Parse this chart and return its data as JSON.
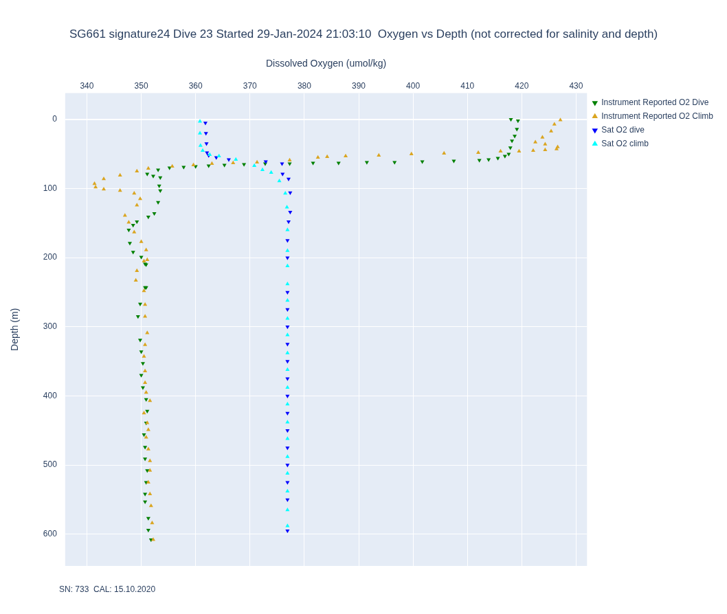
{
  "chart_data": {
    "type": "scatter",
    "title": "SG661 signature24 Dive 23 Started 29-Jan-2024 21:03:10  Oxygen vs Depth (not corrected for salinity and depth)",
    "xlabel": "Dissolved Oxygen (umol/kg)",
    "ylabel": "Depth (m)",
    "xlim": [
      336,
      432
    ],
    "xticks": [
      340,
      350,
      360,
      370,
      380,
      390,
      400,
      410,
      420,
      430
    ],
    "ylim": [
      646,
      -38
    ],
    "yticks": [
      0,
      100,
      200,
      300,
      400,
      500,
      600
    ],
    "grid": true,
    "legend": "top right",
    "marker": "triangle",
    "annotations": [
      "SN: 733  CAL: 15.10.2020"
    ],
    "series": [
      {
        "name": "Instrument Reported O2 Dive",
        "color": "#008000",
        "marker": "triangle-down",
        "x": [
          418.0,
          419.3,
          419.1,
          418.7,
          418.2,
          417.9,
          417.6,
          416.9,
          415.6,
          413.9,
          412.2,
          407.5,
          401.7,
          396.6,
          391.5,
          386.3,
          381.6,
          377.3,
          372.8,
          368.9,
          365.3,
          362.4,
          360.0,
          357.8,
          355.2,
          353.1,
          351.1,
          352.2,
          353.5,
          353.3,
          353.5,
          353.1,
          352.4,
          351.3,
          349.2,
          348.5,
          347.7,
          347.9,
          348.5,
          350.0,
          350.9,
          350.7,
          350.7,
          350.9,
          349.8,
          349.8,
          350.3,
          350.3,
          351.1,
          350.5,
          350.7,
          350.9,
          350.7,
          351.3,
          351.8,
          349.4,
          350.0,
          350.0,
          350.9,
          350.9,
          350.7,
          351.1,
          350.7,
          351.3
        ],
        "values": [
          0,
          2,
          14,
          24,
          31,
          41,
          50,
          53,
          56,
          58,
          59,
          60,
          61,
          62,
          62,
          63,
          63,
          64,
          64,
          65,
          66,
          67,
          68,
          69,
          70,
          73,
          79,
          82,
          84,
          96,
          103,
          120,
          136,
          141,
          148,
          153,
          160,
          179,
          192,
          199,
          210,
          209,
          243,
          243,
          267,
          319,
          353,
          388,
          422,
          456,
          491,
          525,
          553,
          577,
          608,
          285,
          336,
          370,
          405,
          439,
          474,
          508,
          542,
          594
        ]
      },
      {
        "name": "Instrument Reported O2 Climb",
        "color": "#daa520",
        "x": [
          427.1,
          426.0,
          425.4,
          423.8,
          422.5,
          424.3,
          426.6,
          426.4,
          424.3,
          422.1,
          419.5,
          416.1,
          412.0,
          405.7,
          399.7,
          393.7,
          387.6,
          384.2,
          382.5,
          377.3,
          371.3,
          366.9,
          363.0,
          359.6,
          355.7,
          351.3,
          349.2,
          346.1,
          343.1,
          341.4,
          341.6,
          343.1,
          346.1,
          348.7,
          349.8,
          349.2,
          347.0,
          347.7,
          348.7,
          350.0,
          350.9,
          351.1,
          350.5,
          349.2,
          349.0,
          350.5,
          350.7,
          351.1,
          350.5,
          350.7,
          351.6,
          350.5,
          351.3,
          350.9,
          351.6,
          351.3,
          351.8,
          352.2,
          350.7,
          350.7,
          350.7,
          350.9,
          351.1,
          351.3,
          351.6,
          351.6,
          352.0
        ],
        "values": [
          1,
          7,
          17,
          26,
          33,
          36,
          40,
          43,
          44,
          45,
          46,
          46,
          48,
          49,
          50,
          52,
          53,
          54,
          55,
          59,
          62,
          63,
          64,
          66,
          68,
          71,
          75,
          81,
          86,
          93,
          98,
          101,
          103,
          107,
          115,
          124,
          139,
          149,
          163,
          177,
          189,
          203,
          205,
          219,
          233,
          248,
          285,
          309,
          343,
          381,
          407,
          425,
          449,
          460,
          494,
          525,
          559,
          608,
          268,
          326,
          364,
          395,
          439,
          477,
          508,
          542,
          584
        ]
      },
      {
        "name": "Sat O2 dive",
        "color": "#0000ff",
        "marker": "triangle-down",
        "x": [
          361.8,
          361.9,
          362.0,
          362.1,
          362.4,
          363.8,
          366.1,
          372.9,
          375.9,
          376.0,
          377.1,
          377.4,
          377.4,
          377.1,
          376.9,
          376.9,
          376.9,
          376.9,
          376.9,
          376.9,
          376.9,
          376.9,
          376.9,
          376.9,
          376.9,
          376.9,
          376.9,
          376.9,
          376.9,
          376.9
        ],
        "values": [
          5,
          20,
          35,
          48,
          52,
          55,
          58,
          61,
          64,
          79,
          86,
          106,
          134,
          148,
          200,
          300,
          400,
          500,
          550,
          595,
          175,
          250,
          275,
          325,
          350,
          375,
          425,
          450,
          475,
          525
        ]
      },
      {
        "name": "Sat O2 climb",
        "color": "#00ffff",
        "x": [
          360.8,
          360.8,
          360.9,
          361.3,
          362.6,
          364.3,
          367.4,
          370.8,
          372.3,
          373.9,
          375.4,
          376.5,
          376.8,
          376.9,
          376.9,
          376.9,
          376.9,
          376.9,
          376.9,
          376.9,
          376.9,
          376.9,
          376.9,
          376.9,
          376.9,
          376.9,
          376.9,
          376.9,
          376.9,
          376.9,
          376.9
        ],
        "values": [
          3,
          20,
          38,
          45,
          51,
          53,
          58,
          67,
          73,
          77,
          89,
          107,
          127,
          160,
          190,
          212,
          238,
          262,
          288,
          312,
          338,
          362,
          388,
          412,
          438,
          462,
          488,
          512,
          538,
          565,
          588
        ]
      }
    ]
  }
}
